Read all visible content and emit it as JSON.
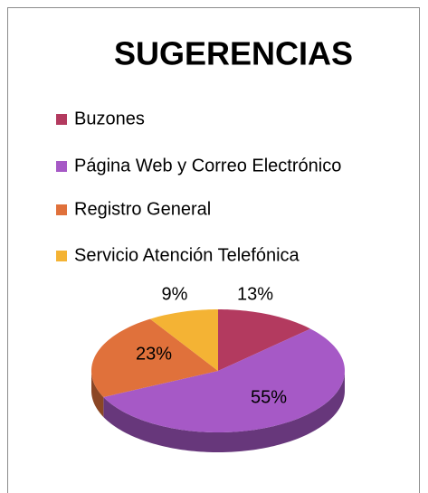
{
  "chart_data": {
    "type": "pie",
    "title": "SUGERENCIAS",
    "categories": [
      "Buzones",
      "Página Web y Correo Electrónico",
      "Registro General",
      "Servicio Atención Telefónica"
    ],
    "values": [
      13,
      55,
      23,
      9
    ],
    "value_labels": [
      "13%",
      "55%",
      "23%",
      "9%"
    ],
    "colors": [
      "#b33a5f",
      "#a659c6",
      "#e0713b",
      "#f4b334"
    ],
    "legend": "top"
  }
}
